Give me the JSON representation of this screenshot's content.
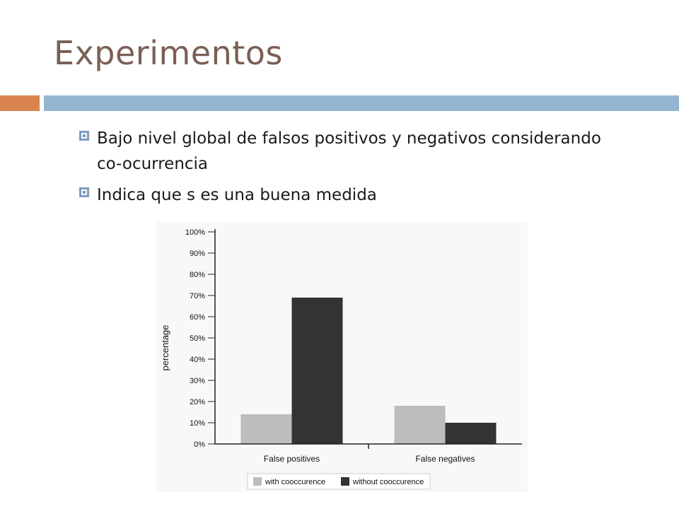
{
  "slide": {
    "title": "Experimentos",
    "accent_colors": {
      "orange": "#d9844f",
      "blue": "#94b6d2"
    },
    "bullets": [
      {
        "text": "Bajo nivel global de falsos positivos y negativos considerando co-ocurrencia"
      },
      {
        "text": "Indica que s es una buena medida"
      }
    ]
  },
  "chart_data": {
    "type": "bar",
    "categories": [
      "False positives",
      "False negatives"
    ],
    "series": [
      {
        "name": "with cooccurence",
        "values": [
          14,
          18
        ],
        "color": "#bdbdbd"
      },
      {
        "name": "without cooccurence",
        "values": [
          69,
          10
        ],
        "color": "#333333"
      }
    ],
    "ylabel": "percentage",
    "xlabel": "",
    "ylim": [
      0,
      100
    ],
    "yticks": [
      "0%",
      "10%",
      "20%",
      "30%",
      "40%",
      "50%",
      "60%",
      "70%",
      "80%",
      "90%",
      "100%"
    ],
    "legend_position": "bottom"
  }
}
